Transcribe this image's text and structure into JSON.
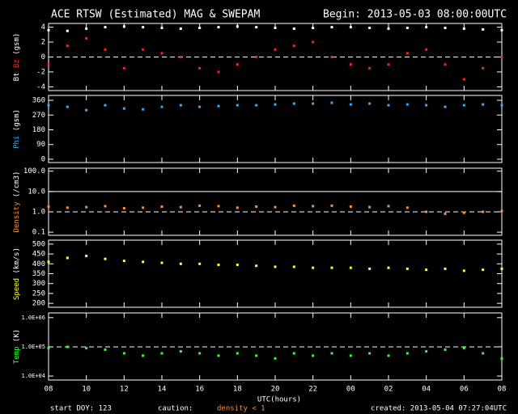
{
  "header": {
    "title": "ACE RTSW (Estimated) MAG & SWEPAM",
    "begin": "Begin: 2013-05-03 08:00:00UTC"
  },
  "x_axis": {
    "label": "UTC(hours)",
    "xlim": [
      0,
      24
    ],
    "xticks": [
      {
        "value": 0,
        "label": "08"
      },
      {
        "value": 2,
        "label": "10"
      },
      {
        "value": 4,
        "label": "12"
      },
      {
        "value": 6,
        "label": "14"
      },
      {
        "value": 8,
        "label": "16"
      },
      {
        "value": 10,
        "label": "18"
      },
      {
        "value": 12,
        "label": "20"
      },
      {
        "value": 14,
        "label": "22"
      },
      {
        "value": 16,
        "label": "00"
      },
      {
        "value": 18,
        "label": "02"
      },
      {
        "value": 20,
        "label": "04"
      },
      {
        "value": 22,
        "label": "06"
      },
      {
        "value": 24,
        "label": "08"
      }
    ]
  },
  "chart_data": [
    {
      "type": "scatter",
      "ylabel": [
        {
          "text": "Bt",
          "color": "#ffffff"
        },
        {
          "text": "Bz",
          "color": "#ff2020"
        },
        {
          "text": "(gsm)",
          "color": "#ffffff"
        }
      ],
      "ylim": [
        -4.5,
        4.5
      ],
      "yticks": [
        -4,
        -2,
        0,
        2,
        4
      ],
      "log": false,
      "ref_lines": [
        {
          "value": 0,
          "dashed": true
        }
      ],
      "x": [
        0,
        1,
        2,
        3,
        4,
        5,
        6,
        7,
        8,
        9,
        10,
        11,
        12,
        13,
        14,
        15,
        16,
        17,
        18,
        19,
        20,
        21,
        22,
        23,
        24
      ],
      "series": [
        {
          "name": "Bt",
          "color": "#ffffff",
          "values": [
            3.6,
            3.5,
            3.8,
            4.0,
            4.1,
            4.0,
            3.9,
            3.8,
            3.9,
            4.0,
            4.1,
            4.0,
            3.9,
            3.8,
            3.9,
            4.0,
            4.0,
            3.9,
            3.8,
            3.9,
            4.0,
            3.9,
            3.8,
            3.7,
            3.6
          ]
        },
        {
          "name": "Bz",
          "color": "#ff2020",
          "values": [
            -1,
            1.5,
            2.5,
            1,
            -1.5,
            1,
            0.5,
            0,
            -1.5,
            -2,
            -1,
            0,
            1,
            1.5,
            2,
            0,
            -1,
            -1.5,
            -1,
            0.5,
            1,
            -1,
            -3,
            -1.5,
            0
          ]
        }
      ]
    },
    {
      "type": "scatter",
      "ylabel": [
        {
          "text": "Phi",
          "color": "#30b0ff"
        },
        {
          "text": "(gsm)",
          "color": "#ffffff"
        }
      ],
      "ylim": [
        -20,
        390
      ],
      "yticks": [
        0,
        90,
        180,
        270,
        360
      ],
      "log": false,
      "ref_lines": [],
      "x": [
        0,
        1,
        2,
        3,
        4,
        5,
        6,
        7,
        8,
        9,
        10,
        11,
        12,
        13,
        14,
        15,
        16,
        17,
        18,
        19,
        20,
        21,
        22,
        23,
        24
      ],
      "series": [
        {
          "name": "Phi",
          "color": "#30b0ff",
          "values": [
            330,
            320,
            300,
            330,
            310,
            305,
            320,
            330,
            320,
            325,
            330,
            330,
            335,
            340,
            340,
            345,
            335,
            340,
            330,
            335,
            330,
            320,
            330,
            335,
            330
          ]
        }
      ]
    },
    {
      "type": "scatter",
      "ylabel": [
        {
          "text": "Density",
          "color": "#ff9030"
        },
        {
          "text": "(/cm3)",
          "color": "#ffffff"
        }
      ],
      "ylim": [
        0.07,
        140
      ],
      "yticks": [
        0.1,
        {
          "value": 1,
          "label": "1.0"
        },
        {
          "value": 10,
          "label": "10.0"
        },
        {
          "value": 100,
          "label": "100.0"
        }
      ],
      "log": true,
      "ref_lines": [
        {
          "value": 10,
          "dashed": false
        },
        {
          "value": 1,
          "dashed": true
        }
      ],
      "x": [
        0,
        1,
        2,
        3,
        4,
        5,
        6,
        7,
        8,
        9,
        10,
        11,
        12,
        13,
        14,
        15,
        16,
        17,
        18,
        19,
        20,
        21,
        22,
        23,
        24
      ],
      "series": [
        {
          "name": "Density",
          "color": "#ff9030",
          "values": [
            1.8,
            1.6,
            1.7,
            1.9,
            1.5,
            1.6,
            1.8,
            1.7,
            2.0,
            1.9,
            1.6,
            1.8,
            1.7,
            2.0,
            1.9,
            2.0,
            1.8,
            1.7,
            1.9,
            1.6,
            1.0,
            0.8,
            0.9,
            1.0,
            1.1
          ]
        }
      ]
    },
    {
      "type": "scatter",
      "ylabel": [
        {
          "text": "Speed",
          "color": "#ffff30"
        },
        {
          "text": "(km/s)",
          "color": "#ffffff"
        }
      ],
      "ylim": [
        180,
        520
      ],
      "yticks": [
        200,
        250,
        300,
        350,
        400,
        450,
        500
      ],
      "log": false,
      "ref_lines": [],
      "x": [
        0,
        1,
        2,
        3,
        4,
        5,
        6,
        7,
        8,
        9,
        10,
        11,
        12,
        13,
        14,
        15,
        16,
        17,
        18,
        19,
        20,
        21,
        22,
        23,
        24
      ],
      "series": [
        {
          "name": "Speed",
          "color": "#ffff30",
          "values": [
            410,
            430,
            440,
            425,
            415,
            410,
            405,
            400,
            400,
            395,
            395,
            390,
            385,
            385,
            380,
            380,
            380,
            375,
            380,
            375,
            370,
            375,
            365,
            370,
            375
          ]
        }
      ]
    },
    {
      "type": "scatter",
      "ylabel": [
        {
          "text": "Temp",
          "color": "#30ff30"
        },
        {
          "text": "(K)",
          "color": "#ffffff"
        }
      ],
      "ylim": [
        7300,
        1450000
      ],
      "yticks": [
        {
          "value": 10000,
          "label": "1.0E+04"
        },
        {
          "value": 100000,
          "label": "1.0E+05"
        },
        {
          "value": 1000000,
          "label": "1.0E+06"
        }
      ],
      "log": true,
      "ref_lines": [
        {
          "value": 100000,
          "dashed": true
        }
      ],
      "x": [
        0,
        1,
        2,
        3,
        4,
        5,
        6,
        7,
        8,
        9,
        10,
        11,
        12,
        13,
        14,
        15,
        16,
        17,
        18,
        19,
        20,
        21,
        22,
        23,
        24
      ],
      "series": [
        {
          "name": "Temp",
          "color": "#30ff30",
          "values": [
            90000,
            100000,
            90000,
            80000,
            60000,
            50000,
            60000,
            70000,
            60000,
            50000,
            60000,
            50000,
            40000,
            60000,
            50000,
            60000,
            50000,
            60000,
            50000,
            60000,
            70000,
            80000,
            90000,
            60000,
            40000
          ]
        }
      ]
    }
  ],
  "footer": {
    "start_doy": "start DOY: 123",
    "caution": "caution:",
    "density_note": "density < 1",
    "created": "created: 2013-05-04 07:27:04UTC"
  }
}
